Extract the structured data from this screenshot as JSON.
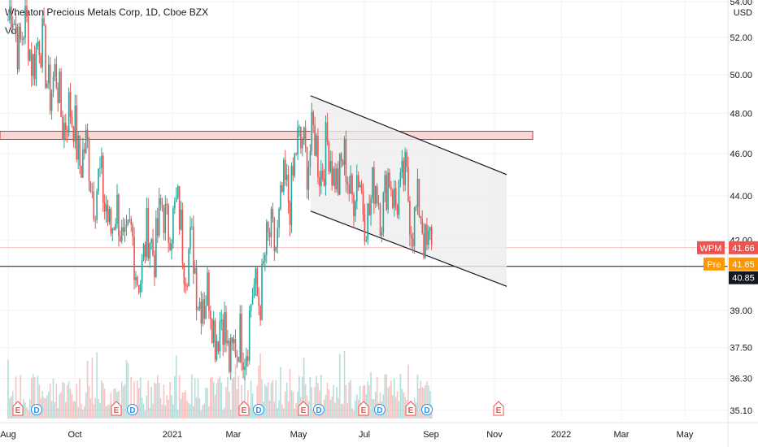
{
  "header": {
    "title": "Wheaton Precious Metals Corp, 1D, Cboe BZX",
    "vol_label": "Vol"
  },
  "colors": {
    "up": "#26a69a",
    "down": "#ef5350",
    "resistance_fill": "#f8d7d7",
    "resistance_stroke": "#cc3333",
    "channel_fill": "#eeeeee",
    "wpm_tag": "#ef5350",
    "pre_tag": "#ff9800",
    "level_tag": "#131722",
    "event_earnings": "#ef5350",
    "event_dividend": "#26a69a",
    "event_dividend_fill": "#2196f3"
  },
  "chart_data": {
    "type": "candlestick",
    "title": "Wheaton Precious Metals Corp, 1D, Cboe BZX",
    "currency": "USD",
    "y_scale": "log",
    "y_ticks": [
      "54.00",
      "52.00",
      "50.00",
      "48.00",
      "46.00",
      "44.00",
      "42.00",
      "39.00",
      "37.50",
      "36.30",
      "35.10"
    ],
    "x_ticks": [
      "Aug",
      "Oct",
      "2021",
      "Mar",
      "May",
      "Jul",
      "Sep",
      "Nov",
      "2022",
      "Mar",
      "May"
    ],
    "grid": true,
    "price_tags": [
      {
        "label": "WPM",
        "value": "41.66"
      },
      {
        "label": "Pre",
        "value": "41.65"
      },
      {
        "label": "",
        "value": "40.85"
      }
    ],
    "anchor_closes": [
      {
        "date": "2020-08",
        "close": 53.0
      },
      {
        "date": "2020-09",
        "close": 51.0
      },
      {
        "date": "2020-10",
        "close": 47.0
      },
      {
        "date": "2020-11",
        "close": 43.5
      },
      {
        "date": "2020-12",
        "close": 41.0
      },
      {
        "date": "2021-01",
        "close": 43.5
      },
      {
        "date": "2021-02",
        "close": 39.5
      },
      {
        "date": "2021-03",
        "close": 37.0
      },
      {
        "date": "2021-04",
        "close": 41.5
      },
      {
        "date": "2021-05",
        "close": 46.5
      },
      {
        "date": "2021-06",
        "close": 45.5
      },
      {
        "date": "2021-07",
        "close": 43.8
      },
      {
        "date": "2021-08",
        "close": 44.5
      },
      {
        "date": "2021-09",
        "close": 41.66
      }
    ],
    "drawings": {
      "resistance_zone": {
        "low": 46.7,
        "high": 47.1
      },
      "support_line": 40.85,
      "descending_channel": {
        "upper": [
          {
            "date": "2021-05",
            "price": 48.9
          },
          {
            "date": "2021-11",
            "price": 45.0
          }
        ],
        "lower": [
          {
            "date": "2021-05",
            "price": 43.3
          },
          {
            "date": "2021-11",
            "price": 40.0
          }
        ]
      }
    },
    "events": [
      "E",
      "D",
      "E",
      "D",
      "E",
      "D",
      "E",
      "D",
      "E",
      "D",
      "E",
      "D",
      "E",
      "D",
      "E"
    ]
  }
}
